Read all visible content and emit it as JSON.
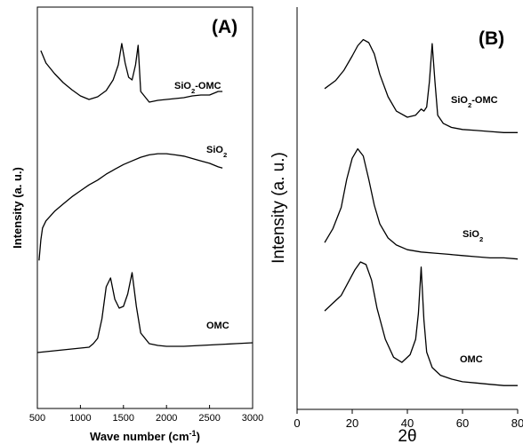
{
  "chart_data": [
    {
      "type": "line",
      "panel_label": "(A)",
      "xlabel_main": "Wave number (cm",
      "xlabel_sup": "-1",
      "xlabel_end": ")",
      "ylabel": "Intensity (a. u.)",
      "xlim": [
        500,
        3000
      ],
      "xticks": [
        "500",
        "1000",
        "1500",
        "2000",
        "2500",
        "3000"
      ],
      "xtick_values": [
        500,
        1000,
        1500,
        2000,
        2500,
        3000
      ],
      "series": [
        {
          "name_main": "SiO",
          "name_sub": "2",
          "name_end": "-OMC",
          "x": [
            540,
            600,
            700,
            800,
            900,
            1000,
            1100,
            1200,
            1300,
            1380,
            1440,
            1480,
            1520,
            1560,
            1600,
            1640,
            1670,
            1700,
            1800,
            1900,
            2000,
            2100,
            2200,
            2300,
            2400,
            2500,
            2600,
            2650
          ],
          "y": [
            0.88,
            0.74,
            0.62,
            0.52,
            0.44,
            0.37,
            0.33,
            0.36,
            0.43,
            0.55,
            0.72,
            0.96,
            0.74,
            0.58,
            0.55,
            0.72,
            0.94,
            0.42,
            0.3,
            0.32,
            0.33,
            0.34,
            0.35,
            0.37,
            0.38,
            0.38,
            0.42,
            0.42
          ]
        },
        {
          "name_main": "SiO",
          "name_sub": "2",
          "name_end": "",
          "x": [
            520,
            540,
            560,
            600,
            700,
            800,
            900,
            1000,
            1100,
            1200,
            1300,
            1400,
            1500,
            1600,
            1700,
            1800,
            1900,
            2000,
            2100,
            2200,
            2300,
            2400,
            2500,
            2600,
            2650
          ],
          "y": [
            0.05,
            0.22,
            0.32,
            0.38,
            0.46,
            0.52,
            0.58,
            0.63,
            0.68,
            0.72,
            0.77,
            0.81,
            0.85,
            0.88,
            0.91,
            0.93,
            0.94,
            0.94,
            0.93,
            0.92,
            0.9,
            0.88,
            0.86,
            0.83,
            0.82
          ]
        },
        {
          "name_main": "OMC",
          "name_sub": "",
          "name_end": "",
          "x": [
            500,
            600,
            700,
            800,
            900,
            1000,
            1100,
            1150,
            1200,
            1250,
            1300,
            1350,
            1400,
            1450,
            1500,
            1550,
            1600,
            1650,
            1700,
            1800,
            1900,
            2000,
            2100,
            2200,
            2400,
            2600,
            2800,
            3000
          ],
          "y": [
            0.08,
            0.09,
            0.1,
            0.11,
            0.12,
            0.13,
            0.14,
            0.18,
            0.24,
            0.46,
            0.82,
            0.92,
            0.68,
            0.58,
            0.6,
            0.74,
            0.98,
            0.6,
            0.3,
            0.18,
            0.16,
            0.15,
            0.15,
            0.15,
            0.16,
            0.17,
            0.18,
            0.19
          ]
        }
      ]
    },
    {
      "type": "line",
      "panel_label": "(B)",
      "xlabel": "2θ",
      "ylabel": "Intensity (a. u.)",
      "xlim": [
        0,
        80
      ],
      "xticks": [
        "0",
        "20",
        "40",
        "60",
        "80"
      ],
      "xtick_values": [
        0,
        20,
        40,
        60,
        80
      ],
      "series": [
        {
          "name_main": "SiO",
          "name_sub": "2",
          "name_end": "-OMC",
          "x": [
            10,
            14,
            17,
            20,
            22,
            24,
            26,
            28,
            30,
            33,
            36,
            40,
            43,
            45,
            46,
            47,
            48,
            49,
            50,
            51,
            53,
            56,
            60,
            65,
            70,
            75,
            80
          ],
          "y": [
            0.48,
            0.56,
            0.66,
            0.8,
            0.9,
            0.96,
            0.93,
            0.82,
            0.62,
            0.4,
            0.26,
            0.2,
            0.22,
            0.28,
            0.26,
            0.3,
            0.55,
            0.92,
            0.55,
            0.22,
            0.14,
            0.1,
            0.08,
            0.07,
            0.06,
            0.05,
            0.05
          ]
        },
        {
          "name_main": "SiO",
          "name_sub": "2",
          "name_end": "",
          "x": [
            10,
            13,
            16,
            18,
            20,
            22,
            24,
            26,
            28,
            30,
            33,
            36,
            40,
            45,
            50,
            55,
            60,
            65,
            70,
            75,
            80
          ],
          "y": [
            0.18,
            0.3,
            0.48,
            0.72,
            0.9,
            0.98,
            0.92,
            0.72,
            0.5,
            0.34,
            0.22,
            0.16,
            0.12,
            0.1,
            0.09,
            0.08,
            0.07,
            0.06,
            0.05,
            0.05,
            0.04
          ]
        },
        {
          "name_main": "OMC",
          "name_sub": "",
          "name_end": "",
          "x": [
            10,
            13,
            16,
            19,
            21,
            23,
            25,
            27,
            29,
            32,
            35,
            38,
            41,
            43,
            44,
            45,
            46,
            47,
            49,
            52,
            56,
            60,
            65,
            70,
            75,
            80
          ],
          "y": [
            0.62,
            0.68,
            0.74,
            0.86,
            0.94,
            1.0,
            0.98,
            0.86,
            0.64,
            0.4,
            0.26,
            0.22,
            0.28,
            0.4,
            0.6,
            0.96,
            0.55,
            0.3,
            0.18,
            0.12,
            0.09,
            0.07,
            0.06,
            0.05,
            0.04,
            0.04
          ]
        }
      ]
    }
  ]
}
